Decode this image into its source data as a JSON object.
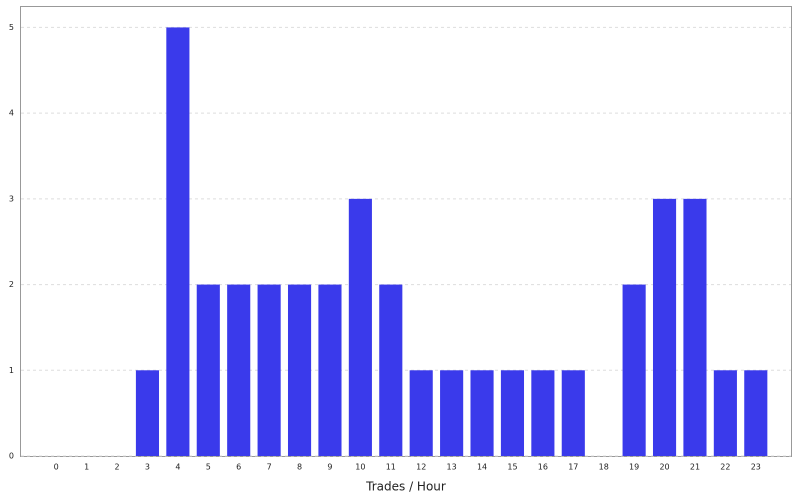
{
  "chart_data": {
    "type": "bar",
    "x_label": "Trades / Hour",
    "categories": [
      "0",
      "1",
      "2",
      "3",
      "4",
      "5",
      "6",
      "7",
      "8",
      "9",
      "10",
      "11",
      "12",
      "13",
      "14",
      "15",
      "16",
      "17",
      "18",
      "19",
      "20",
      "21",
      "22",
      "23"
    ],
    "values": [
      0,
      0,
      0,
      1,
      5,
      2,
      2,
      2,
      2,
      2,
      3,
      2,
      1,
      1,
      1,
      1,
      1,
      1,
      0,
      2,
      3,
      3,
      1,
      1
    ],
    "color": "#3a3aeb",
    "ylim": [
      0,
      5.25
    ],
    "yticks": [
      0,
      1,
      2,
      3,
      4,
      5
    ],
    "grid": true
  }
}
